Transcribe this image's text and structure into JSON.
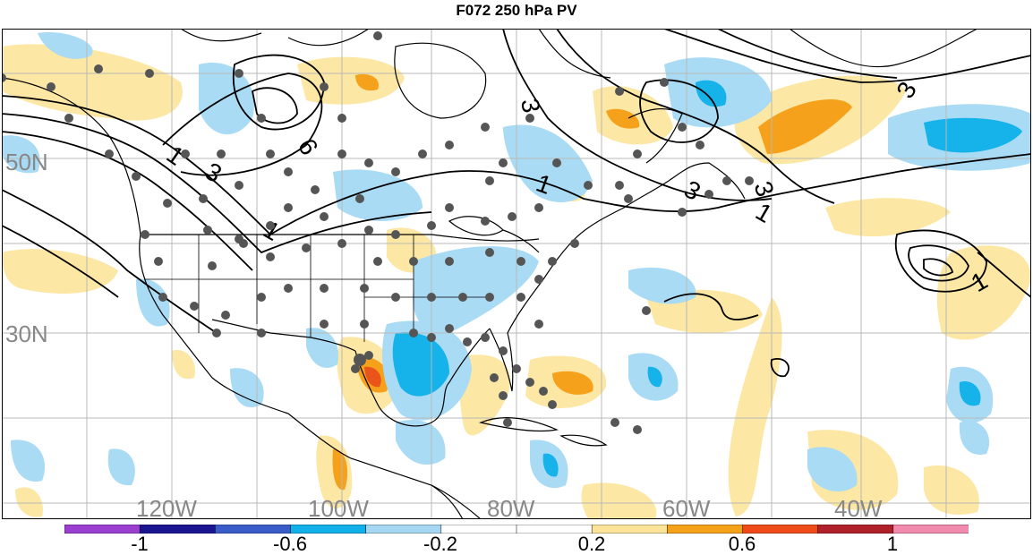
{
  "title": "F072 250 hPa PV",
  "lat_labels": [
    "50N",
    "30N"
  ],
  "lon_labels": [
    "120W",
    "100W",
    "80W",
    "60W",
    "40W"
  ],
  "contour_labels": [
    "1",
    "1",
    "1",
    "1",
    "1",
    "3",
    "3",
    "3",
    "3",
    "3",
    "6"
  ],
  "colorbar": {
    "tick_labels": [
      "-1",
      "-0.6",
      "-0.2",
      "0.2",
      "0.6",
      "1"
    ],
    "colors": [
      "#9a3fd0",
      "#1b1490",
      "#3a5cc8",
      "#12b0e8",
      "#a6d7f2",
      "#ffffff",
      "#ffffff",
      "#fbe49a",
      "#f5a21a",
      "#ef4a1a",
      "#b0202a",
      "#f28aae"
    ]
  },
  "colors": {
    "neg_weak": "#a9dbf5",
    "neg_mid": "#16b2ea",
    "pos_weak": "#fce7a4",
    "pos_mid": "#f5a11c",
    "pos_strong": "#e8541a",
    "coast": "#000000",
    "grid": "#b8b8b8",
    "station": "#555555"
  }
}
